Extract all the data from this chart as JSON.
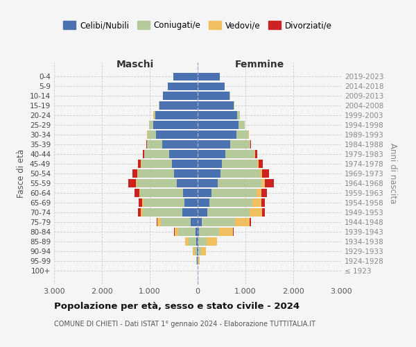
{
  "age_groups": [
    "100+",
    "95-99",
    "90-94",
    "85-89",
    "80-84",
    "75-79",
    "70-74",
    "65-69",
    "60-64",
    "55-59",
    "50-54",
    "45-49",
    "40-44",
    "35-39",
    "30-34",
    "25-29",
    "20-24",
    "15-19",
    "10-14",
    "5-9",
    "0-4"
  ],
  "birth_years": [
    "≤ 1923",
    "1924-1928",
    "1929-1933",
    "1934-1938",
    "1939-1943",
    "1944-1948",
    "1949-1953",
    "1954-1958",
    "1959-1963",
    "1964-1968",
    "1969-1973",
    "1974-1978",
    "1979-1983",
    "1984-1988",
    "1989-1993",
    "1994-1998",
    "1999-2003",
    "2004-2008",
    "2009-2013",
    "2014-2018",
    "2019-2023"
  ],
  "male_celibi": [
    3,
    8,
    15,
    25,
    50,
    150,
    320,
    280,
    300,
    430,
    490,
    530,
    600,
    740,
    870,
    930,
    890,
    800,
    720,
    620,
    510
  ],
  "male_coniugati": [
    3,
    15,
    50,
    170,
    350,
    620,
    820,
    850,
    900,
    850,
    760,
    650,
    510,
    320,
    180,
    85,
    30,
    7,
    3,
    1,
    1
  ],
  "male_vedovi": [
    1,
    6,
    30,
    65,
    85,
    70,
    50,
    32,
    16,
    10,
    7,
    5,
    3,
    2,
    1,
    1,
    1,
    0,
    0,
    0,
    0
  ],
  "male_divorziati": [
    0,
    1,
    3,
    6,
    10,
    22,
    50,
    65,
    100,
    155,
    100,
    65,
    30,
    15,
    7,
    3,
    2,
    0,
    0,
    0,
    0
  ],
  "female_nubili": [
    2,
    6,
    12,
    20,
    35,
    90,
    200,
    240,
    290,
    420,
    480,
    510,
    580,
    680,
    810,
    860,
    830,
    750,
    670,
    570,
    460
  ],
  "female_coniugate": [
    2,
    12,
    55,
    165,
    410,
    690,
    890,
    910,
    940,
    910,
    830,
    740,
    610,
    415,
    255,
    125,
    52,
    16,
    5,
    2,
    1
  ],
  "female_vedove": [
    2,
    22,
    100,
    220,
    290,
    305,
    260,
    182,
    108,
    70,
    42,
    23,
    11,
    5,
    3,
    1,
    1,
    0,
    0,
    0,
    0
  ],
  "female_divorziate": [
    0,
    1,
    3,
    6,
    16,
    32,
    60,
    80,
    118,
    192,
    143,
    88,
    42,
    20,
    9,
    4,
    3,
    0,
    0,
    0,
    0
  ],
  "colors_celibi": "#4a72b0",
  "colors_coniugati": "#b5c99a",
  "colors_vedovi": "#f0c060",
  "colors_divorziati": "#cc2222",
  "bg_color": "#f5f5f5",
  "grid_color": "#cccccc",
  "xlim": 3000,
  "xticks": [
    -3000,
    -2000,
    -1000,
    0,
    1000,
    2000,
    3000
  ],
  "xticklabels": [
    "3.000",
    "2.000",
    "1.000",
    "0",
    "1.000",
    "2.000",
    "3.000"
  ],
  "legend_labels": [
    "Celibi/Nubili",
    "Coniugati/e",
    "Vedovi/e",
    "Divorziati/e"
  ],
  "ylabel_left": "Fasce di età",
  "ylabel_right": "Anni di nascita",
  "label_maschi": "Maschi",
  "label_femmine": "Femmine",
  "title": "Popolazione per età, sesso e stato civile - 2024",
  "subtitle": "COMUNE DI CHIETI - Dati ISTAT 1° gennaio 2024 - Elaborazione TUTTITALIA.IT"
}
